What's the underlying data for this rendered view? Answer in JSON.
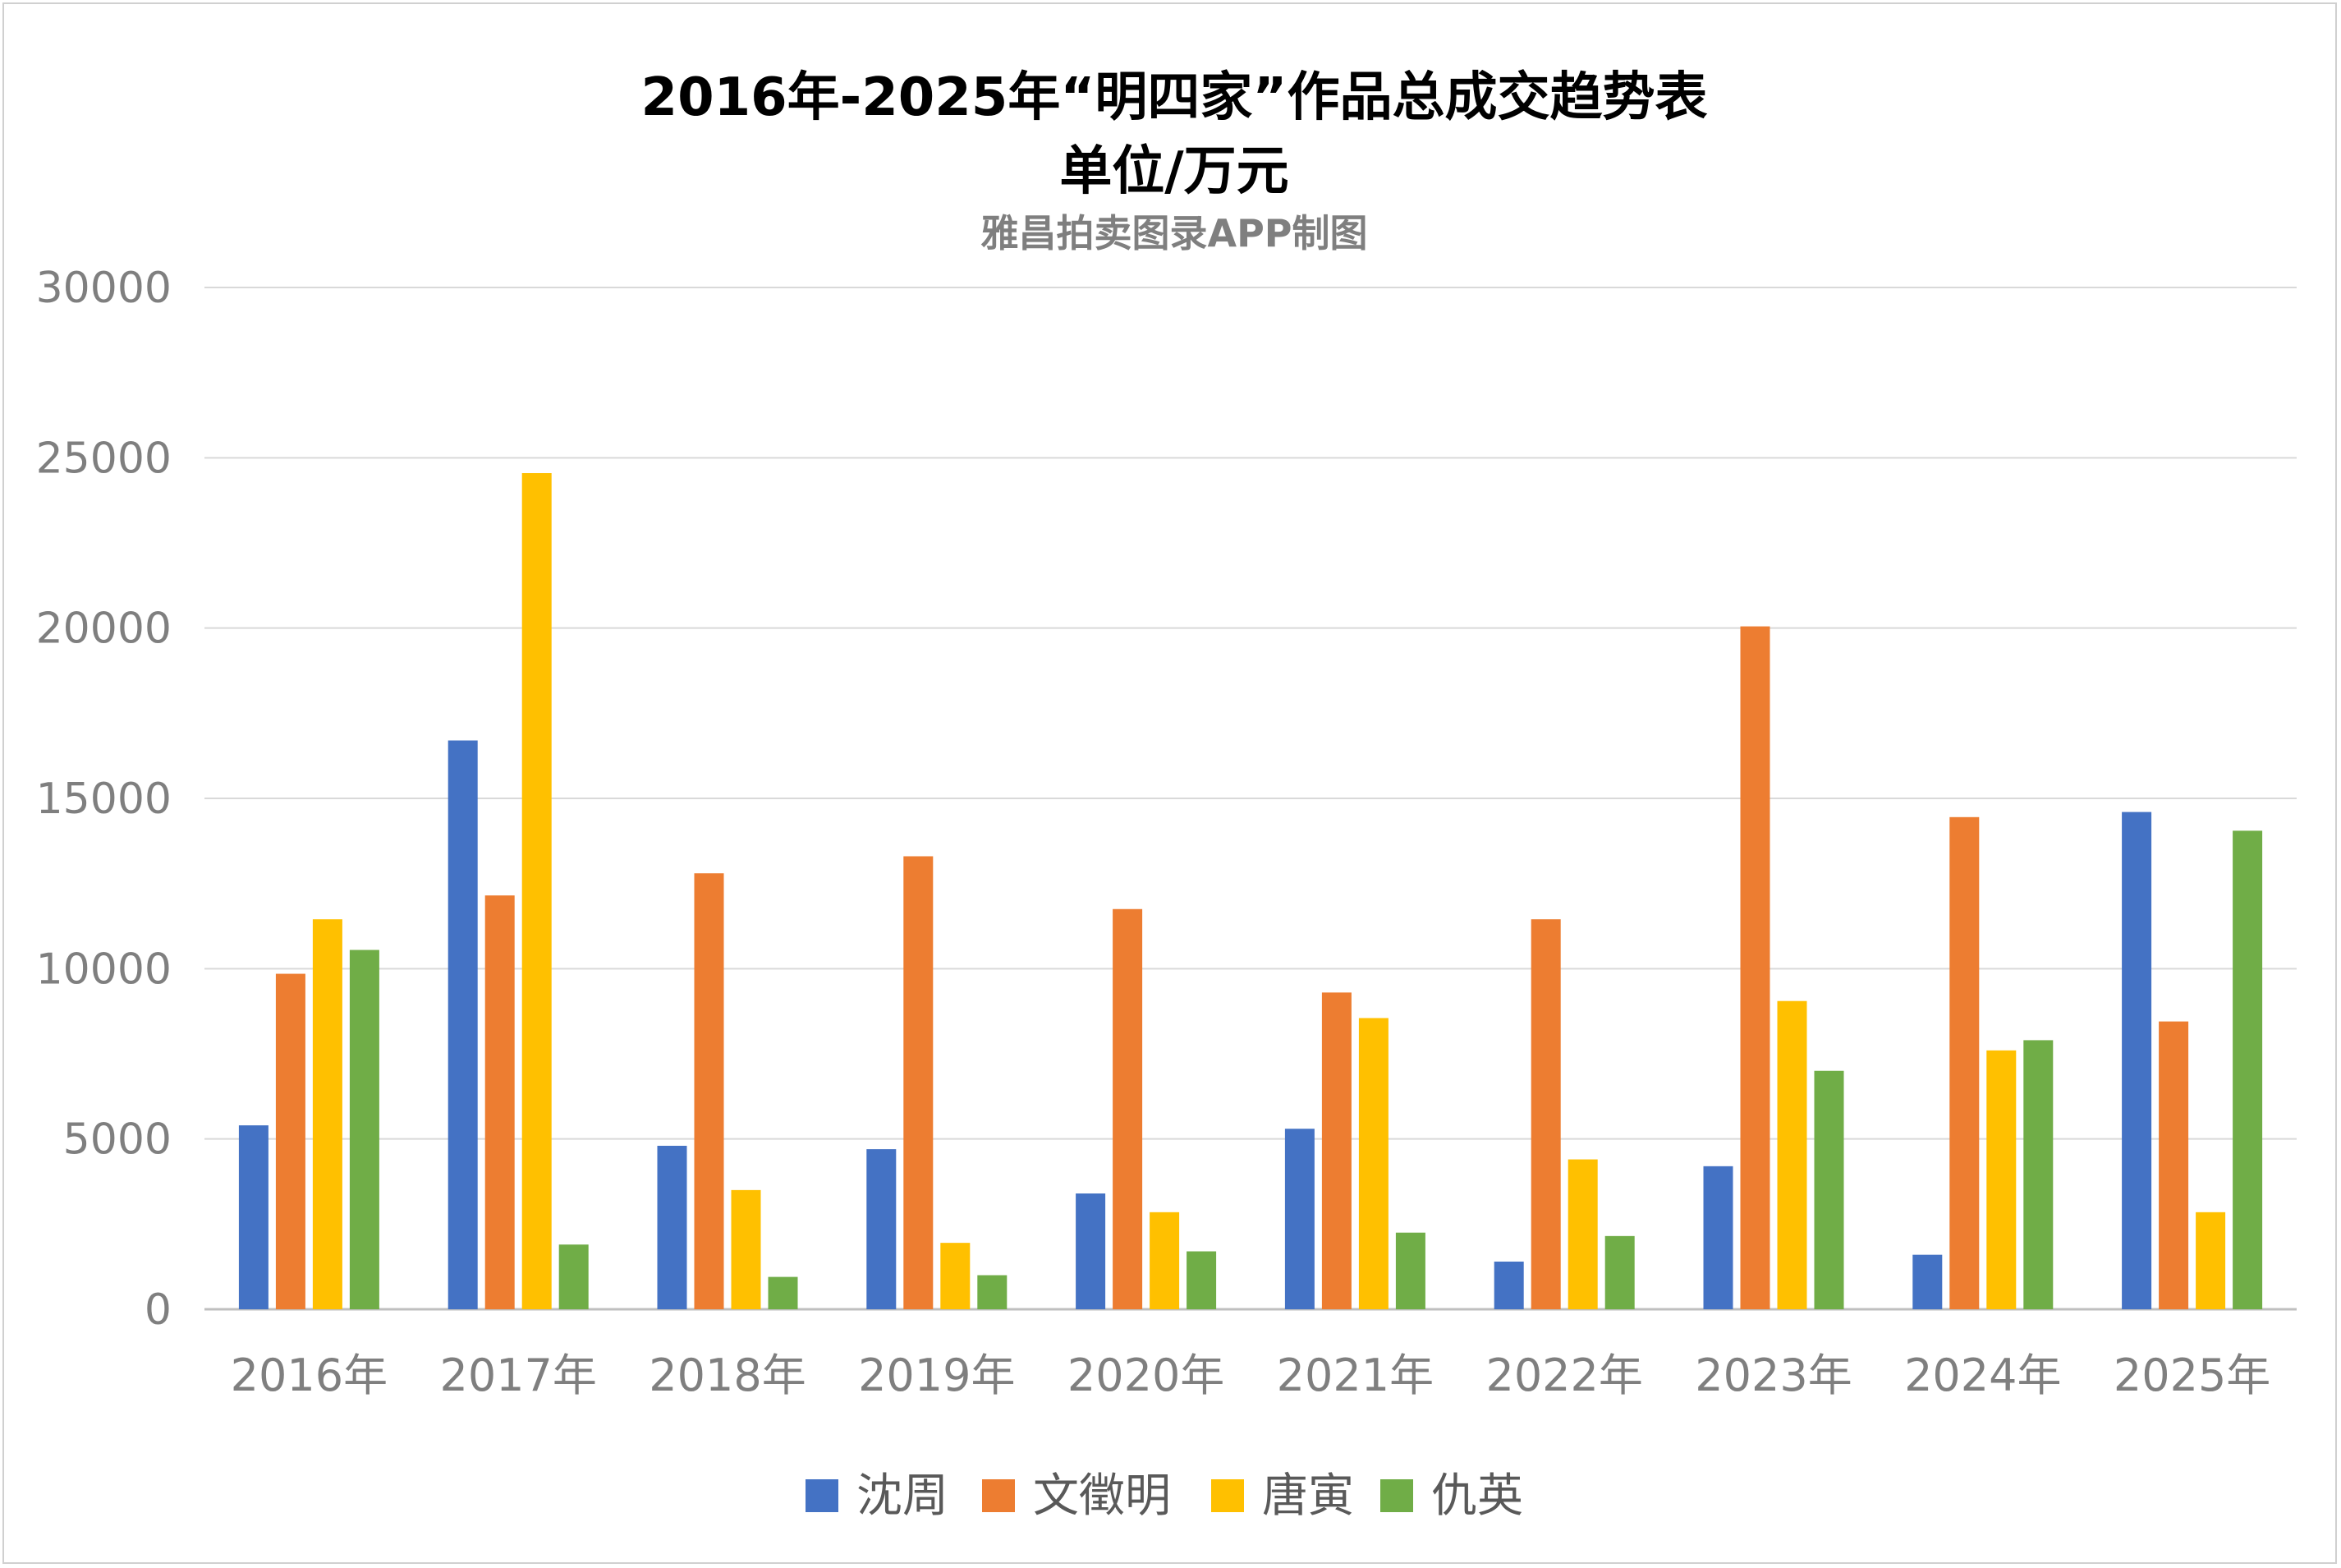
{
  "chart_data": {
    "type": "bar",
    "title": "2016年-2025年“明四家”作品总成交趋势表",
    "title_line2": "单位/万元",
    "subtitle": "雅昌拍卖图录APP制图",
    "categories": [
      "2016年",
      "2017年",
      "2018年",
      "2019年",
      "2020年",
      "2021年",
      "2022年",
      "2023年",
      "2024年",
      "2025年"
    ],
    "ylim": [
      0,
      30000
    ],
    "yticks": [
      "0",
      "5000",
      "10000",
      "15000",
      "20000",
      "25000",
      "30000"
    ],
    "grid": true,
    "legend_position": "bottom",
    "series": [
      {
        "name": "沈周",
        "color": "#4472c4",
        "values": [
          5400,
          16700,
          4800,
          4700,
          3400,
          5300,
          1400,
          4200,
          1600,
          14600
        ]
      },
      {
        "name": "文徵明",
        "color": "#ed7d31",
        "values": [
          9850,
          12150,
          12800,
          13300,
          11750,
          9300,
          11450,
          20050,
          14450,
          8450
        ]
      },
      {
        "name": "唐寅",
        "color": "#ffc000",
        "values": [
          11450,
          24550,
          3500,
          1950,
          2850,
          8550,
          4400,
          9050,
          7600,
          2850
        ]
      },
      {
        "name": "仇英",
        "color": "#70ad47",
        "values": [
          10550,
          1900,
          950,
          1000,
          1700,
          2250,
          2150,
          7000,
          7900,
          14050
        ]
      }
    ]
  }
}
